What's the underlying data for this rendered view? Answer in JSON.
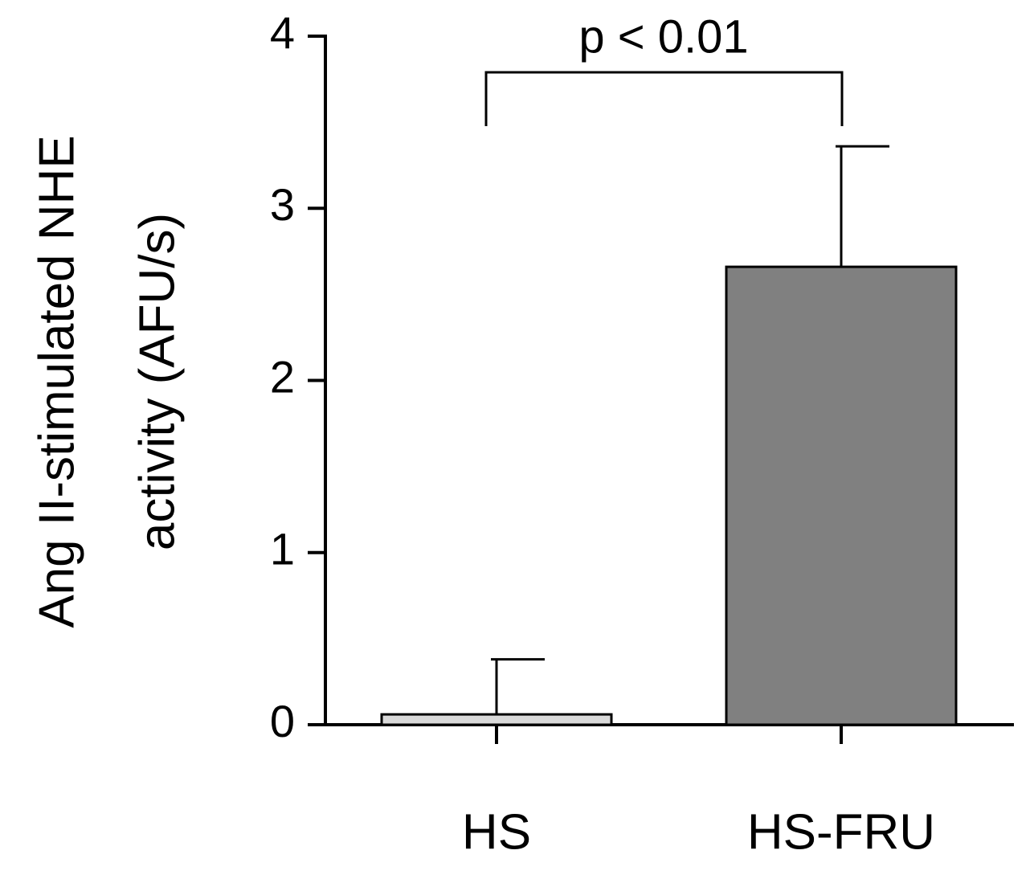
{
  "chart_data": {
    "type": "bar",
    "y_label_lines": [
      "Ang II-stimulated NHE",
      "activity (AFU/s)"
    ],
    "categories": [
      "HS",
      "HS-FRU"
    ],
    "values": [
      0.06,
      2.66
    ],
    "errors": [
      0.32,
      0.7
    ],
    "colors": [
      "#d9d9d9",
      "#808080"
    ],
    "ylim": [
      0,
      4
    ],
    "yticks": [
      0,
      1,
      2,
      3,
      4
    ],
    "annotation": "p < 0.01"
  }
}
